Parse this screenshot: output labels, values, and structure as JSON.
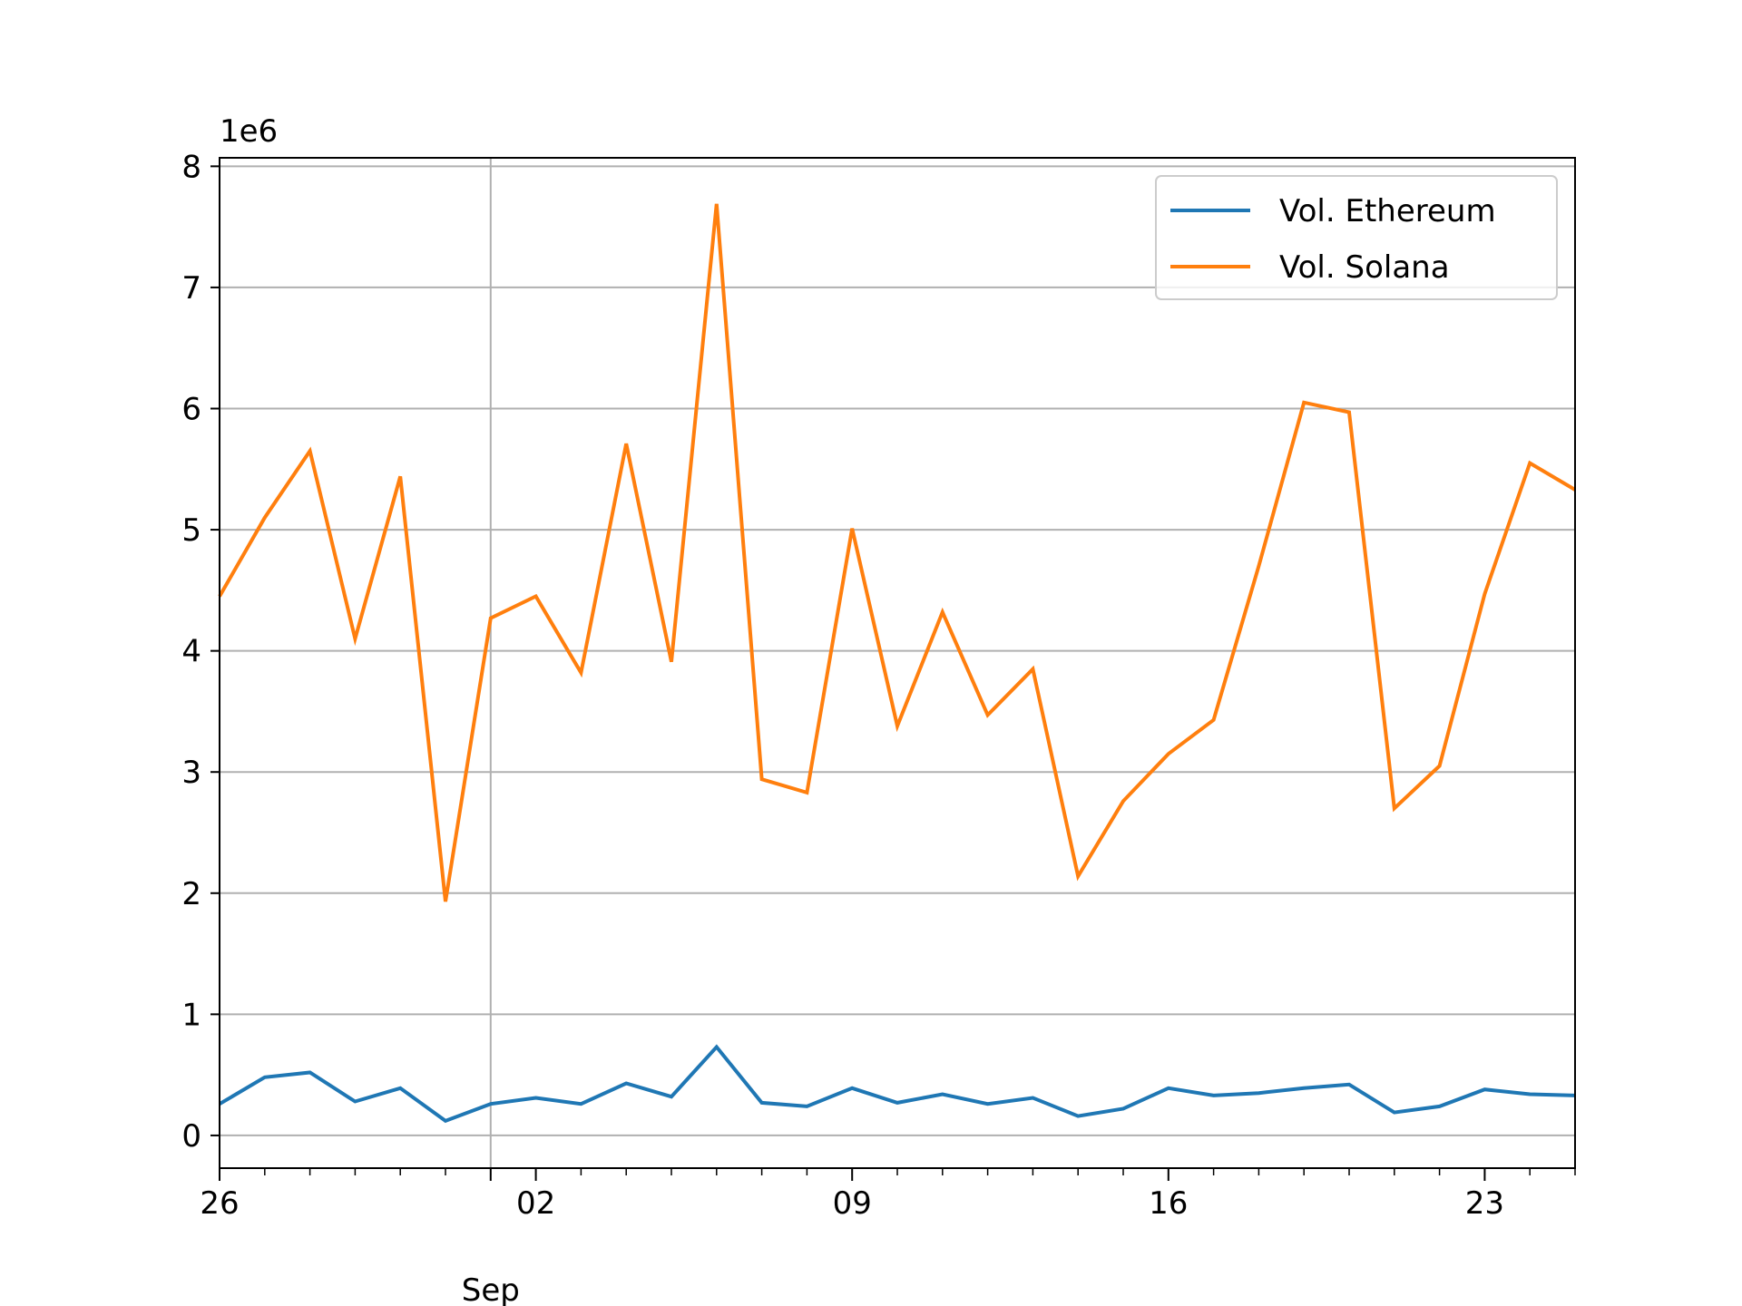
{
  "chart_data": {
    "type": "line",
    "title": "",
    "xlabel": "",
    "ylabel": "",
    "y_offset_label": "1e6",
    "ylim": [
      -0.27,
      8.07
    ],
    "y_ticks": [
      0,
      1,
      2,
      3,
      4,
      5,
      6,
      7,
      8
    ],
    "y_tick_labels": [
      "0",
      "1",
      "2",
      "3",
      "4",
      "5",
      "6",
      "7",
      "8"
    ],
    "x_dates": [
      "2024-08-26",
      "2024-08-27",
      "2024-08-28",
      "2024-08-29",
      "2024-08-30",
      "2024-08-31",
      "2024-09-01",
      "2024-09-02",
      "2024-09-03",
      "2024-09-04",
      "2024-09-05",
      "2024-09-06",
      "2024-09-07",
      "2024-09-08",
      "2024-09-09",
      "2024-09-10",
      "2024-09-11",
      "2024-09-12",
      "2024-09-13",
      "2024-09-14",
      "2024-09-15",
      "2024-09-16",
      "2024-09-17",
      "2024-09-18",
      "2024-09-19",
      "2024-09-20",
      "2024-09-21",
      "2024-09-22",
      "2024-09-23",
      "2024-09-24",
      "2024-09-25"
    ],
    "xlim": [
      "2024-08-26",
      "2024-09-25"
    ],
    "x_major_ticks": [
      {
        "date": "2024-08-26",
        "label": "26"
      },
      {
        "date": "2024-09-02",
        "label": "02"
      },
      {
        "date": "2024-09-09",
        "label": "09"
      },
      {
        "date": "2024-09-16",
        "label": "16"
      },
      {
        "date": "2024-09-23",
        "label": "23"
      }
    ],
    "x_month_label": {
      "date": "2024-09-01",
      "label": "Sep"
    },
    "grid": {
      "horizontal": true,
      "vertical_at": [
        "2024-09-01"
      ]
    },
    "legend_position": "top-right",
    "series": [
      {
        "name": "Vol. Ethereum",
        "color": "#1f77b4",
        "values": [
          0.26,
          0.48,
          0.52,
          0.28,
          0.39,
          0.12,
          0.26,
          0.31,
          0.26,
          0.43,
          0.32,
          0.73,
          0.27,
          0.24,
          0.39,
          0.27,
          0.34,
          0.26,
          0.31,
          0.16,
          0.22,
          0.39,
          0.33,
          0.35,
          0.39,
          0.42,
          0.19,
          0.24,
          0.38,
          0.34,
          0.33
        ]
      },
      {
        "name": "Vol. Solana",
        "color": "#ff7f0e",
        "values": [
          4.45,
          5.1,
          5.65,
          4.1,
          5.44,
          1.93,
          4.27,
          4.45,
          3.82,
          5.71,
          3.91,
          7.69,
          2.94,
          2.83,
          5.01,
          3.38,
          4.32,
          3.47,
          3.85,
          2.14,
          2.76,
          3.15,
          3.43,
          4.7,
          6.05,
          5.97,
          2.7,
          3.05,
          4.47,
          5.55,
          5.33
        ]
      }
    ]
  }
}
